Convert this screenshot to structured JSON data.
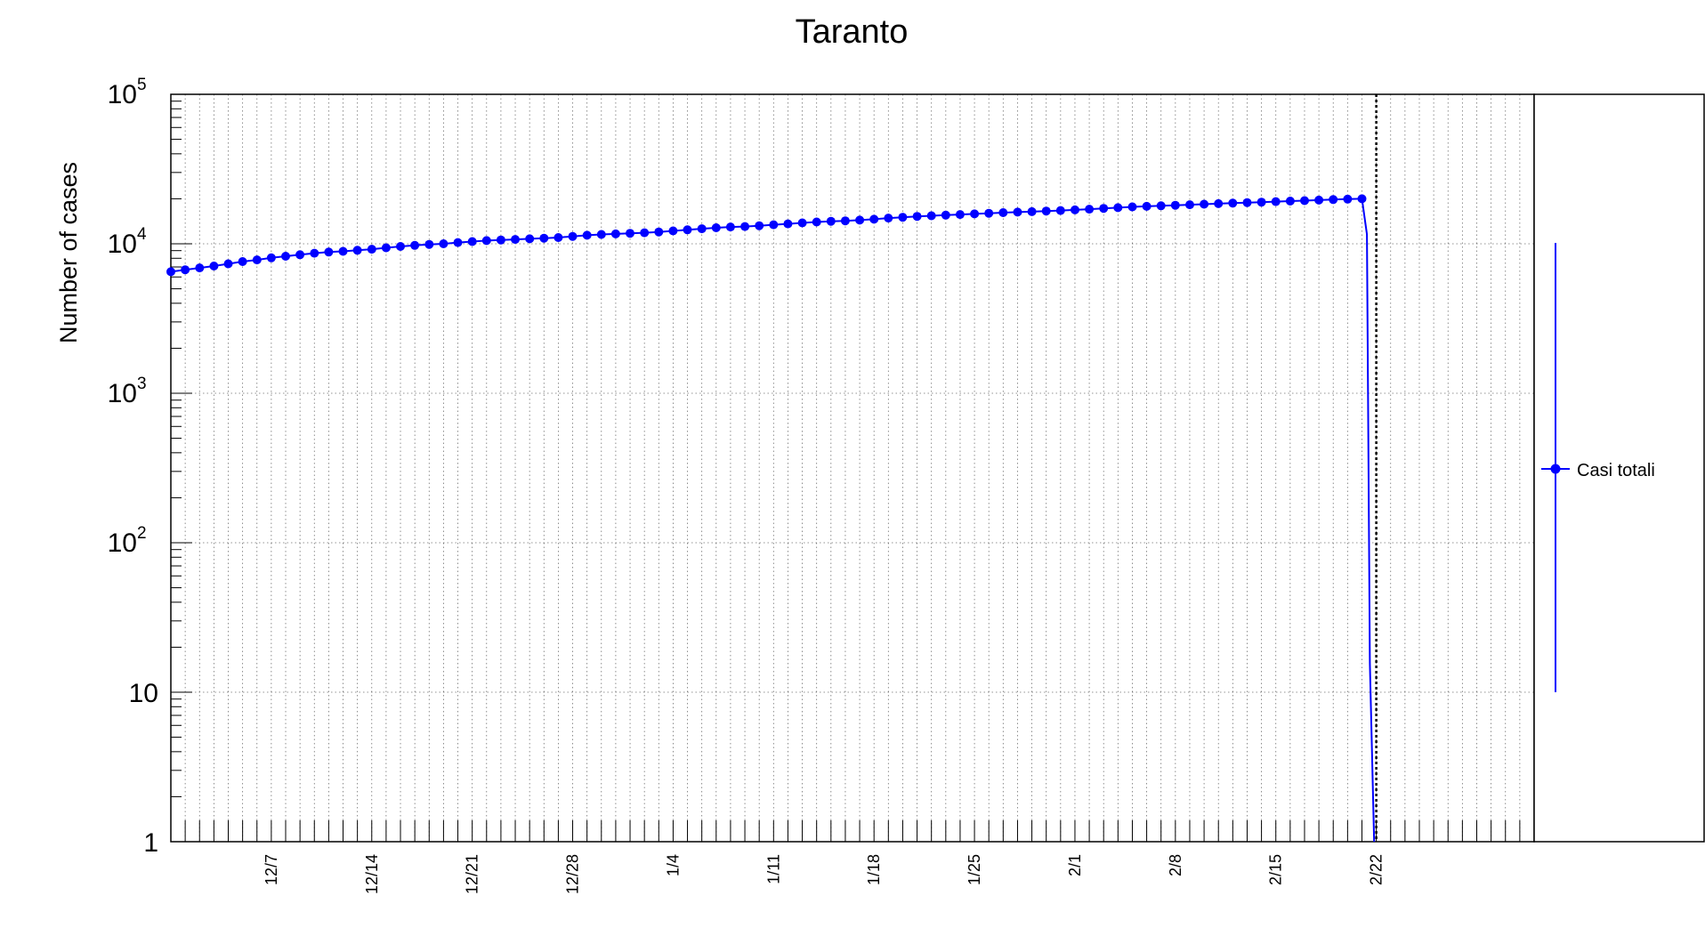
{
  "chart_data": {
    "type": "line",
    "title": "Taranto",
    "ylabel": "Number of cases",
    "xlabel": "",
    "yscale": "log",
    "ylim": [
      1,
      100000
    ],
    "ytick_labels": [
      {
        "value": 1,
        "base": "1",
        "exp": ""
      },
      {
        "value": 10,
        "base": "10",
        "exp": ""
      },
      {
        "value": 100,
        "base": "10",
        "exp": "2"
      },
      {
        "value": 1000,
        "base": "10",
        "exp": "3"
      },
      {
        "value": 10000,
        "base": "10",
        "exp": "4"
      },
      {
        "value": 100000,
        "base": "10",
        "exp": "5"
      }
    ],
    "xlim": [
      "2020-11-30",
      "2021-03-05"
    ],
    "xtick_labels": [
      "12/7",
      "12/14",
      "12/21",
      "12/28",
      "1/4",
      "1/11",
      "1/18",
      "1/25",
      "2/1",
      "2/8",
      "2/15",
      "2/22"
    ],
    "xtick_dates": [
      "2020-12-07",
      "2020-12-14",
      "2020-12-21",
      "2020-12-28",
      "2021-01-04",
      "2021-01-11",
      "2021-01-18",
      "2021-01-25",
      "2021-02-01",
      "2021-02-08",
      "2021-02-15",
      "2021-02-22"
    ],
    "grid": true,
    "marker_color": "#0000ff",
    "vertical_marker_date": "2021-02-22",
    "series": [
      {
        "name": "Casi totali",
        "x": [
          "2020-11-30",
          "2020-12-01",
          "2020-12-02",
          "2020-12-03",
          "2020-12-04",
          "2020-12-05",
          "2020-12-06",
          "2020-12-07",
          "2020-12-08",
          "2020-12-09",
          "2020-12-10",
          "2020-12-11",
          "2020-12-12",
          "2020-12-13",
          "2020-12-14",
          "2020-12-15",
          "2020-12-16",
          "2020-12-17",
          "2020-12-18",
          "2020-12-19",
          "2020-12-20",
          "2020-12-21",
          "2020-12-22",
          "2020-12-23",
          "2020-12-24",
          "2020-12-25",
          "2020-12-26",
          "2020-12-27",
          "2020-12-28",
          "2020-12-29",
          "2020-12-30",
          "2020-12-31",
          "2021-01-01",
          "2021-01-02",
          "2021-01-03",
          "2021-01-04",
          "2021-01-05",
          "2021-01-06",
          "2021-01-07",
          "2021-01-08",
          "2021-01-09",
          "2021-01-10",
          "2021-01-11",
          "2021-01-12",
          "2021-01-13",
          "2021-01-14",
          "2021-01-15",
          "2021-01-16",
          "2021-01-17",
          "2021-01-18",
          "2021-01-19",
          "2021-01-20",
          "2021-01-21",
          "2021-01-22",
          "2021-01-23",
          "2021-01-24",
          "2021-01-25",
          "2021-01-26",
          "2021-01-27",
          "2021-01-28",
          "2021-01-29",
          "2021-01-30",
          "2021-01-31",
          "2021-02-01",
          "2021-02-02",
          "2021-02-03",
          "2021-02-04",
          "2021-02-05",
          "2021-02-06",
          "2021-02-07",
          "2021-02-08",
          "2021-02-09",
          "2021-02-10",
          "2021-02-11",
          "2021-02-12",
          "2021-02-13",
          "2021-02-14",
          "2021-02-15",
          "2021-02-16",
          "2021-02-17",
          "2021-02-18",
          "2021-02-19",
          "2021-02-20",
          "2021-02-21"
        ],
        "values": [
          6500,
          6700,
          6900,
          7100,
          7350,
          7600,
          7800,
          8050,
          8250,
          8450,
          8650,
          8800,
          8900,
          9050,
          9200,
          9400,
          9600,
          9750,
          9900,
          10000,
          10200,
          10350,
          10500,
          10600,
          10700,
          10800,
          10900,
          11000,
          11200,
          11400,
          11550,
          11650,
          11750,
          11850,
          12000,
          12200,
          12400,
          12600,
          12800,
          12950,
          13050,
          13200,
          13400,
          13600,
          13800,
          14000,
          14150,
          14250,
          14400,
          14600,
          14850,
          15050,
          15250,
          15400,
          15550,
          15700,
          15850,
          16000,
          16150,
          16300,
          16400,
          16550,
          16700,
          16850,
          17050,
          17250,
          17450,
          17650,
          17800,
          17950,
          18100,
          18250,
          18400,
          18550,
          18700,
          18850,
          19000,
          19150,
          19300,
          19450,
          19600,
          19750,
          19900,
          20000
        ]
      }
    ],
    "legend": {
      "position": "right",
      "label": "Casi totali"
    }
  }
}
